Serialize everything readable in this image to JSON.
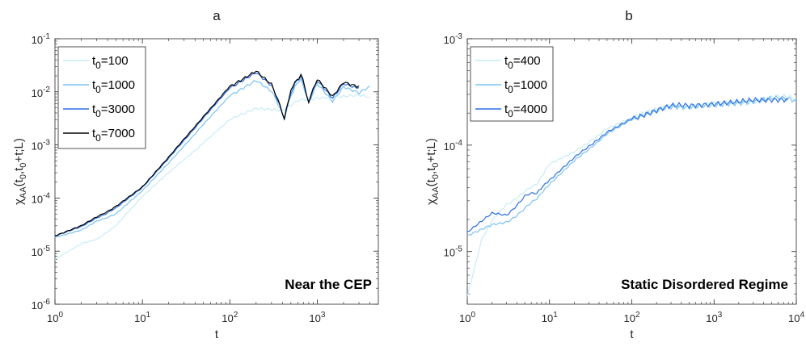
{
  "chart_data": [
    {
      "type": "line",
      "panel_label": "a",
      "title": "",
      "xlabel": "t",
      "ylabel": "χAA(t0,t0+t;L)",
      "xscale": "log",
      "yscale": "log",
      "xlim": [
        1,
        5000
      ],
      "ylim": [
        1e-06,
        0.1
      ],
      "xticks": [
        {
          "value": 1,
          "base": "10",
          "exp": "0"
        },
        {
          "value": 10,
          "base": "10",
          "exp": "1"
        },
        {
          "value": 100,
          "base": "10",
          "exp": "2"
        },
        {
          "value": 1000,
          "base": "10",
          "exp": "3"
        }
      ],
      "yticks": [
        {
          "value": 1e-06,
          "base": "10",
          "exp": "-6"
        },
        {
          "value": 1e-05,
          "base": "10",
          "exp": "-5"
        },
        {
          "value": 0.0001,
          "base": "10",
          "exp": "-4"
        },
        {
          "value": 0.001,
          "base": "10",
          "exp": "-3"
        },
        {
          "value": 0.01,
          "base": "10",
          "exp": "-2"
        },
        {
          "value": 0.1,
          "base": "10",
          "exp": "-1"
        }
      ],
      "legend_position": "top-left",
      "annotation": "Near the CEP",
      "series": [
        {
          "name": "t0=100",
          "color": "#c8ecf6",
          "x": [
            1,
            2,
            3,
            5,
            10,
            20,
            50,
            100,
            200,
            300,
            400,
            600,
            1000,
            2000,
            3000,
            4000
          ],
          "y": [
            7e-06,
            1.4e-05,
            1.7e-05,
            3e-05,
            0.000105,
            0.0003,
            0.0011,
            0.003,
            0.0047,
            0.0045,
            0.0042,
            0.0065,
            0.008,
            0.0085,
            0.009,
            0.008
          ]
        },
        {
          "name": "t0=1000",
          "color": "#7cc3ef",
          "x": [
            1,
            2,
            3,
            5,
            10,
            20,
            50,
            100,
            200,
            300,
            420,
            500,
            650,
            800,
            1000,
            1500,
            2000,
            3000,
            4000
          ],
          "y": [
            1.8e-05,
            2.5e-05,
            3.7e-05,
            5e-05,
            0.000135,
            0.00045,
            0.0025,
            0.0085,
            0.016,
            0.01,
            0.0033,
            0.009,
            0.018,
            0.006,
            0.015,
            0.007,
            0.013,
            0.01,
            0.013
          ]
        },
        {
          "name": "t0=3000",
          "color": "#2f6fe0",
          "x": [
            1,
            2,
            3,
            5,
            10,
            20,
            50,
            100,
            200,
            300,
            420,
            500,
            650,
            800,
            1000,
            1500,
            2000,
            3000
          ],
          "y": [
            1.9e-05,
            2.9e-05,
            4.2e-05,
            6.5e-05,
            0.000155,
            0.00055,
            0.0033,
            0.012,
            0.023,
            0.013,
            0.0032,
            0.01,
            0.021,
            0.0062,
            0.017,
            0.008,
            0.015,
            0.012
          ]
        },
        {
          "name": "t0=7000",
          "color": "#000000",
          "x": [
            1,
            2,
            3,
            5,
            10,
            20,
            50,
            100,
            200,
            300,
            420,
            500,
            650,
            800,
            1000,
            1500,
            2000,
            3000
          ],
          "y": [
            1.9e-05,
            3e-05,
            4.4e-05,
            7e-05,
            0.00016,
            0.00058,
            0.0035,
            0.013,
            0.025,
            0.014,
            0.0032,
            0.011,
            0.022,
            0.0063,
            0.018,
            0.0085,
            0.016,
            0.013
          ]
        }
      ]
    },
    {
      "type": "line",
      "panel_label": "b",
      "title": "",
      "xlabel": "t",
      "ylabel": "χAA(t0,t0+t;L)",
      "xscale": "log",
      "yscale": "log",
      "xlim": [
        1,
        10000
      ],
      "ylim": [
        3.2e-06,
        0.001
      ],
      "xticks": [
        {
          "value": 1,
          "base": "10",
          "exp": "0"
        },
        {
          "value": 10,
          "base": "10",
          "exp": "1"
        },
        {
          "value": 100,
          "base": "10",
          "exp": "2"
        },
        {
          "value": 1000,
          "base": "10",
          "exp": "3"
        },
        {
          "value": 10000,
          "base": "10",
          "exp": "4"
        }
      ],
      "yticks": [
        {
          "value": 1e-05,
          "base": "10",
          "exp": "-5"
        },
        {
          "value": 0.0001,
          "base": "10",
          "exp": "-4"
        },
        {
          "value": 0.001,
          "base": "10",
          "exp": "-3"
        }
      ],
      "legend_position": "top-left",
      "annotation": "Static Disordered Regime",
      "series": [
        {
          "name": "t0=400",
          "color": "#c8ecf6",
          "x": [
            1,
            1.5,
            2,
            3,
            5,
            7,
            10,
            20,
            50,
            100,
            200,
            500,
            1000,
            3000,
            10000
          ],
          "y": [
            3.8e-06,
            1.3e-05,
            2e-05,
            2.8e-05,
            3.6e-05,
            4.4e-05,
            6.5e-05,
            8.5e-05,
            0.000145,
            0.00018,
            0.00021,
            0.00024,
            0.00026,
            0.00026,
            0.00028
          ]
        },
        {
          "name": "t0=1000",
          "color": "#7cc3ef",
          "x": [
            1,
            2,
            3,
            5,
            7,
            10,
            20,
            50,
            100,
            200,
            500,
            1000,
            3000,
            10000
          ],
          "y": [
            1.4e-05,
            1.8e-05,
            1.9e-05,
            2.5e-05,
            3.2e-05,
            4.2e-05,
            7e-05,
            0.00013,
            0.000175,
            0.000205,
            0.000235,
            0.00025,
            0.00027,
            0.00026
          ]
        },
        {
          "name": "t0=4000",
          "color": "#2f6fe0",
          "x": [
            1,
            2,
            3,
            5,
            7,
            10,
            20,
            50,
            100,
            200,
            500,
            1000,
            3000,
            8000
          ],
          "y": [
            1.5e-05,
            2.3e-05,
            2.2e-05,
            3.3e-05,
            3.6e-05,
            4.6e-05,
            7.5e-05,
            0.000135,
            0.00018,
            0.00021,
            0.00024,
            0.000255,
            0.00028,
            0.00027
          ]
        }
      ]
    }
  ]
}
